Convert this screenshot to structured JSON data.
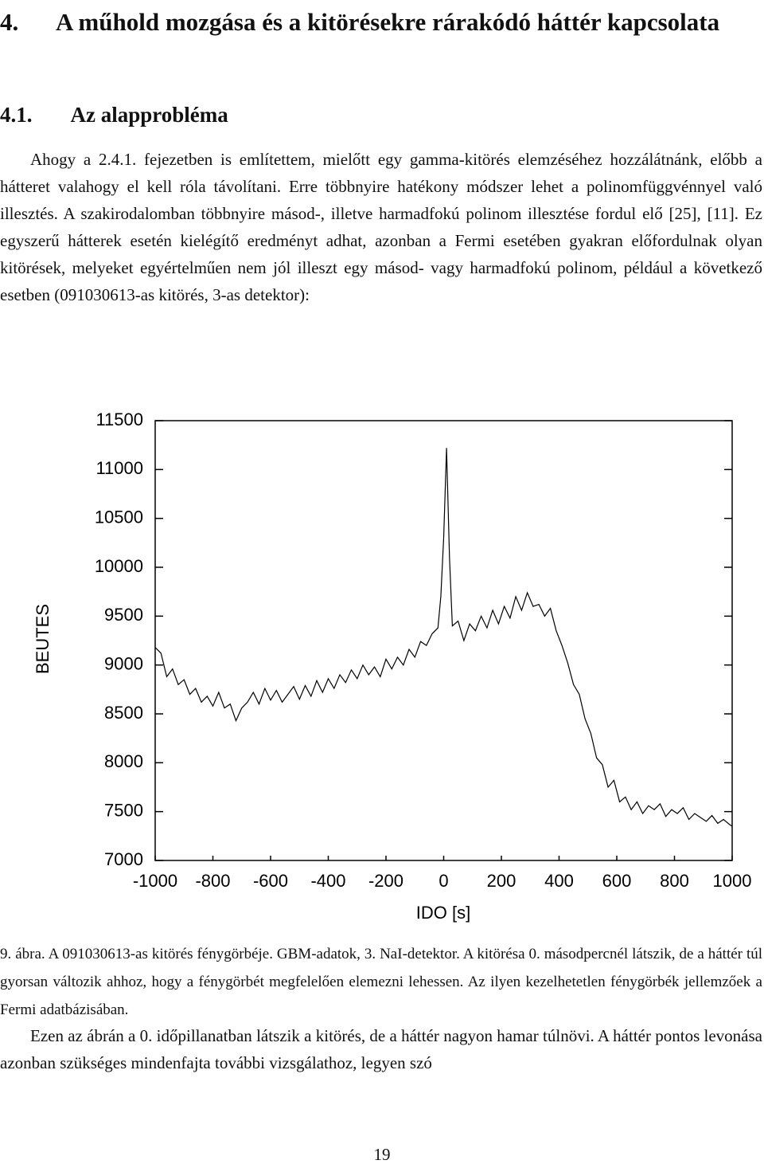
{
  "heading": {
    "number": "4.",
    "title": "A műhold mozgása és a kitörésekre rárakódó háttér kapcsolata"
  },
  "subheading": {
    "number": "4.1.",
    "title": "Az alapprobléma"
  },
  "paragraph_1": "Ahogy a 2.4.1. fejezetben is említettem, mielőtt egy gamma-kitörés elemzéséhez hozzálátnánk, előbb a hátteret valahogy el kell róla távolítani. Erre többnyire hatékony módszer lehet a polinomfüggvénnyel való illesztés. A szakirodalomban többnyire másod-, illetve harmadfokú polinom illesztése fordul elő [25], [11]. Ez egyszerű hátterek esetén kielégítő eredményt adhat, azonban a Fermi esetében gyakran előfordulnak olyan kitörések, melyeket egyértelműen nem jól illeszt egy másod- vagy harmadfokú polinom, például a következő esetben (091030613-as kitörés, 3-as detektor):",
  "chart_data": {
    "type": "line",
    "x_label": "IDO [s]",
    "y_label": "BEUTES",
    "color": "#000000",
    "xlim": [
      -1000,
      1000
    ],
    "xticks": [
      -1000,
      -800,
      -600,
      -400,
      -200,
      0,
      200,
      400,
      600,
      800,
      1000
    ],
    "ylim": [
      7000,
      11500
    ],
    "yticks": [
      7000,
      7500,
      8000,
      8500,
      9000,
      9500,
      10000,
      10500,
      11000,
      11500
    ],
    "x": [
      -1000,
      -980,
      -960,
      -940,
      -920,
      -900,
      -880,
      -860,
      -840,
      -820,
      -800,
      -780,
      -760,
      -740,
      -720,
      -700,
      -680,
      -660,
      -640,
      -620,
      -600,
      -580,
      -560,
      -540,
      -520,
      -500,
      -480,
      -460,
      -440,
      -420,
      -400,
      -380,
      -360,
      -340,
      -320,
      -300,
      -280,
      -260,
      -240,
      -220,
      -200,
      -180,
      -160,
      -140,
      -120,
      -100,
      -80,
      -60,
      -40,
      -20,
      -10,
      0,
      10,
      20,
      30,
      50,
      70,
      90,
      110,
      130,
      150,
      170,
      190,
      210,
      230,
      250,
      270,
      290,
      310,
      330,
      350,
      370,
      390,
      410,
      430,
      450,
      470,
      490,
      510,
      530,
      550,
      570,
      590,
      610,
      630,
      650,
      670,
      690,
      710,
      730,
      750,
      770,
      790,
      810,
      830,
      850,
      870,
      890,
      910,
      930,
      950,
      970,
      990,
      1000
    ],
    "values": [
      9180,
      9120,
      8880,
      8960,
      8800,
      8850,
      8700,
      8760,
      8620,
      8680,
      8580,
      8720,
      8560,
      8600,
      8430,
      8560,
      8620,
      8720,
      8600,
      8760,
      8640,
      8740,
      8620,
      8700,
      8780,
      8650,
      8790,
      8680,
      8840,
      8720,
      8860,
      8760,
      8900,
      8820,
      8950,
      8860,
      9000,
      8900,
      8980,
      8880,
      9060,
      8960,
      9080,
      9000,
      9160,
      9080,
      9240,
      9200,
      9320,
      9380,
      9700,
      10300,
      11220,
      10100,
      9400,
      9450,
      9250,
      9420,
      9350,
      9500,
      9380,
      9560,
      9420,
      9600,
      9480,
      9700,
      9560,
      9740,
      9600,
      9620,
      9500,
      9580,
      9350,
      9200,
      9020,
      8800,
      8700,
      8450,
      8300,
      8050,
      7980,
      7750,
      7820,
      7600,
      7650,
      7520,
      7600,
      7480,
      7560,
      7520,
      7580,
      7450,
      7520,
      7480,
      7540,
      7420,
      7480,
      7440,
      7400,
      7460,
      7380,
      7420,
      7370,
      7350
    ]
  },
  "caption": {
    "label": "9. ábra.",
    "text": "A 091030613-as kitörés fénygörbéje. GBM-adatok, 3. NaI-detektor. A kitörésa 0. másodpercnél látszik, de a háttér túl gyorsan változik ahhoz, hogy a fénygörbét megfelelően elemezni lehessen. Az ilyen kezelhetetlen fénygörbék jellemzőek a Fermi adatbázisában."
  },
  "paragraph_2": "Ezen az ábrán a 0. időpillanatban látszik a kitörés, de a háttér nagyon hamar túlnövi. A háttér pontos levonása azonban szükséges mindenfajta további vizsgálathoz, legyen szó",
  "page_number": "19"
}
